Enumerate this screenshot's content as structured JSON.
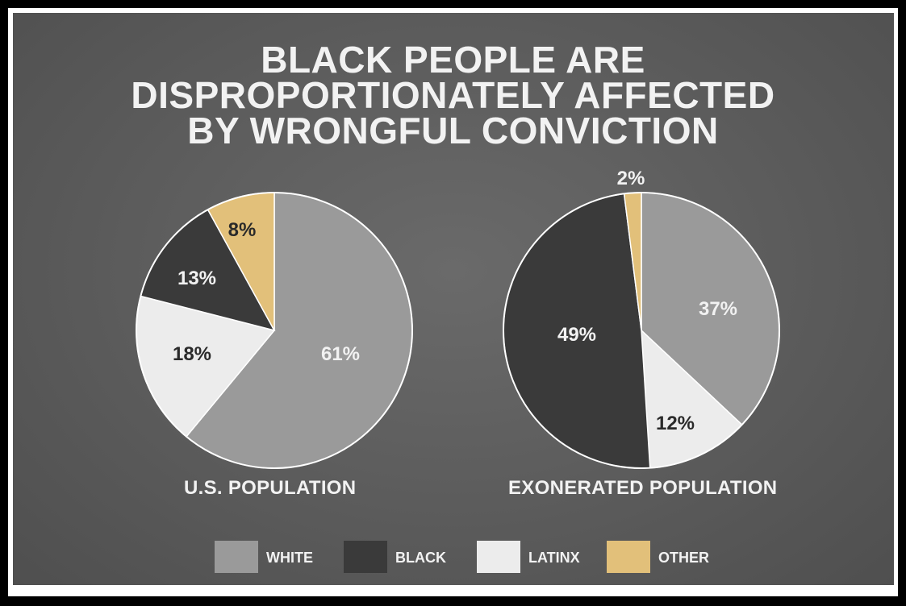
{
  "title": {
    "line1": "BLACK PEOPLE ARE",
    "line2": "DISPROPORTIONATELY AFFECTED",
    "line3": "BY WRONGFUL CONVICTION"
  },
  "colors": {
    "white": "#9a9a9a",
    "black": "#3a3a3a",
    "latinx": "#ececec",
    "other": "#e2c07a"
  },
  "legend": [
    {
      "label": "WHITE",
      "color": "#9a9a9a"
    },
    {
      "label": "BLACK",
      "color": "#3a3a3a"
    },
    {
      "label": "LATINX",
      "color": "#ececec"
    },
    {
      "label": "OTHER",
      "color": "#e2c07a"
    }
  ],
  "chart_data": [
    {
      "type": "pie",
      "title": "U.S. POPULATION",
      "categories": [
        "WHITE",
        "LATINX",
        "BLACK",
        "OTHER"
      ],
      "values": [
        61,
        18,
        13,
        8
      ],
      "labels": [
        "61%",
        "18%",
        "13%",
        "8%"
      ]
    },
    {
      "type": "pie",
      "title": "EXONERATED POPULATION",
      "categories": [
        "WHITE",
        "LATINX",
        "BLACK",
        "OTHER"
      ],
      "values": [
        37,
        12,
        49,
        2
      ],
      "labels": [
        "37%",
        "12%",
        "49%",
        "2%"
      ]
    }
  ]
}
